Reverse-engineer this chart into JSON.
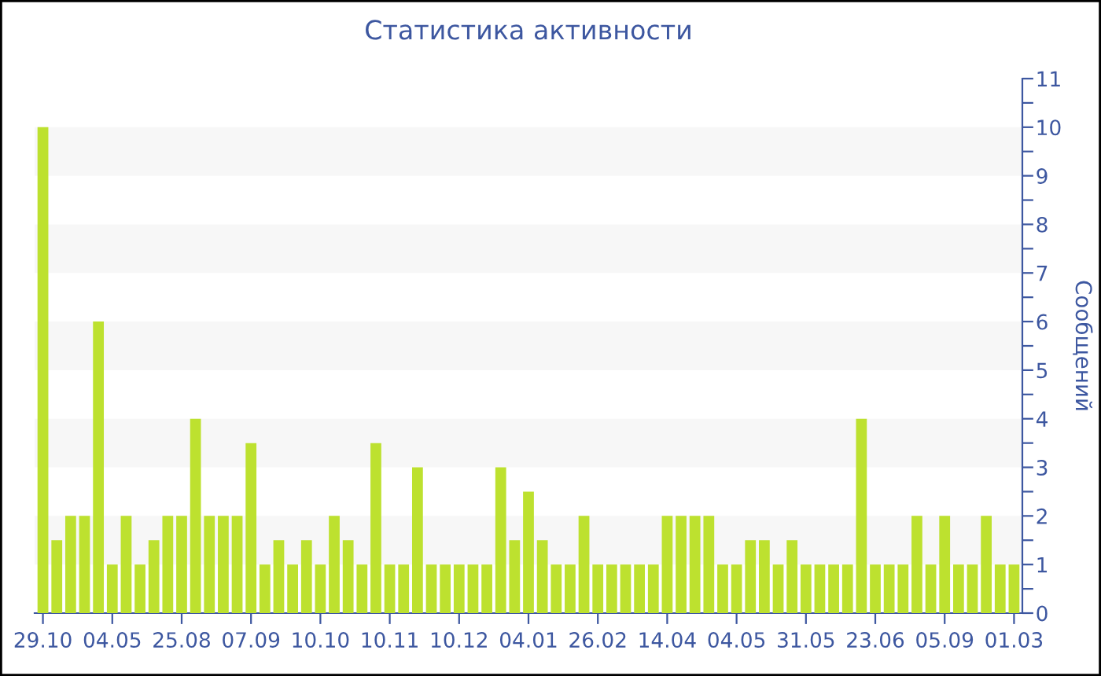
{
  "chart_data": {
    "type": "bar",
    "title": "Статистика активности",
    "ylabel": "Сообщений",
    "categories": [
      "29.10",
      null,
      null,
      null,
      null,
      "04.05",
      null,
      null,
      null,
      null,
      "25.08",
      null,
      null,
      null,
      null,
      "07.09",
      null,
      null,
      null,
      null,
      "10.10",
      null,
      null,
      null,
      null,
      "10.11",
      null,
      null,
      null,
      null,
      "10.12",
      null,
      null,
      null,
      null,
      "04.01",
      null,
      null,
      null,
      null,
      "26.02",
      null,
      null,
      null,
      null,
      "14.04",
      null,
      null,
      null,
      null,
      "04.05",
      null,
      null,
      null,
      null,
      "31.05",
      null,
      null,
      null,
      null,
      "23.06",
      null,
      null,
      null,
      null,
      "05.09",
      null,
      null,
      null,
      null,
      "01.03"
    ],
    "values": [
      10,
      1.5,
      2,
      2,
      6,
      1,
      2,
      1,
      1.5,
      2,
      2,
      4,
      2,
      2,
      2,
      3.5,
      1,
      1.5,
      1,
      1.5,
      1,
      2,
      1.5,
      1,
      3.5,
      1,
      1,
      3,
      1,
      1,
      1,
      1,
      1,
      3,
      1.5,
      2.5,
      1.5,
      1,
      1,
      2,
      1,
      1,
      1,
      1,
      1,
      2,
      2,
      2,
      2,
      1,
      1,
      1.5,
      1.5,
      1,
      1.5,
      1,
      1,
      1,
      1,
      4,
      1,
      1,
      1,
      2,
      1,
      2,
      1,
      1,
      2,
      1,
      1
    ],
    "color": "#bde12f",
    "ylim": [
      0,
      11
    ],
    "yticks": [
      0,
      {
        "value": 0.5,
        "label": null
      },
      1,
      {
        "value": 1.5,
        "label": null
      },
      2,
      {
        "value": 2.5,
        "label": null
      },
      3,
      {
        "value": 3.5,
        "label": null
      },
      4,
      {
        "value": 4.5,
        "label": null
      },
      5,
      {
        "value": 5.5,
        "label": null
      },
      6,
      {
        "value": 6.5,
        "label": null
      },
      7,
      {
        "value": 7.5,
        "label": null
      },
      8,
      {
        "value": 8.5,
        "label": null
      },
      9,
      {
        "value": 9.5,
        "label": null
      },
      10,
      {
        "value": 10.5,
        "label": null
      },
      11
    ],
    "bands": [
      {
        "axis": "y",
        "from": 1,
        "to": 2,
        "color": "#f7f7f7"
      },
      {
        "axis": "y",
        "from": 3,
        "to": 4,
        "color": "#f7f7f7"
      },
      {
        "axis": "y",
        "from": 5,
        "to": 6,
        "color": "#f7f7f7"
      },
      {
        "axis": "y",
        "from": 7,
        "to": 8,
        "color": "#f7f7f7"
      },
      {
        "axis": "y",
        "from": 9,
        "to": 10,
        "color": "#f7f7f7"
      }
    ],
    "grid": false,
    "legend": false
  }
}
